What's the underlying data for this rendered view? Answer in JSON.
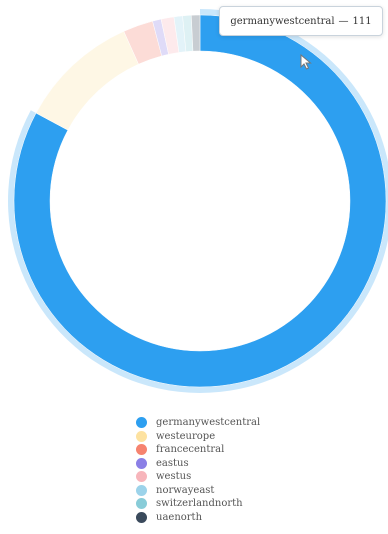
{
  "chart_data": {
    "type": "donut",
    "tooltip": {
      "label": "germanywestcentral",
      "separator": "—",
      "value": "111"
    },
    "series": [
      {
        "name": "germanywestcentral",
        "value": 111,
        "color": "#2d9ff0"
      },
      {
        "name": "westeurope",
        "value": 14,
        "color": "#fde2a0"
      },
      {
        "name": "francecentral",
        "value": 3.5,
        "color": "#f6836f"
      },
      {
        "name": "eastus",
        "value": 1,
        "color": "#8b7fe6"
      },
      {
        "name": "westus",
        "value": 1.5,
        "color": "#f7b5bb"
      },
      {
        "name": "norwayeast",
        "value": 1,
        "color": "#9cd3ea"
      },
      {
        "name": "switzerlandnorth",
        "value": 1,
        "color": "#88ccd8"
      },
      {
        "name": "uaenorth",
        "value": 1,
        "color": "#3a4a5c"
      }
    ],
    "highlighted": "germanywestcentral",
    "legend_position": "bottom"
  }
}
